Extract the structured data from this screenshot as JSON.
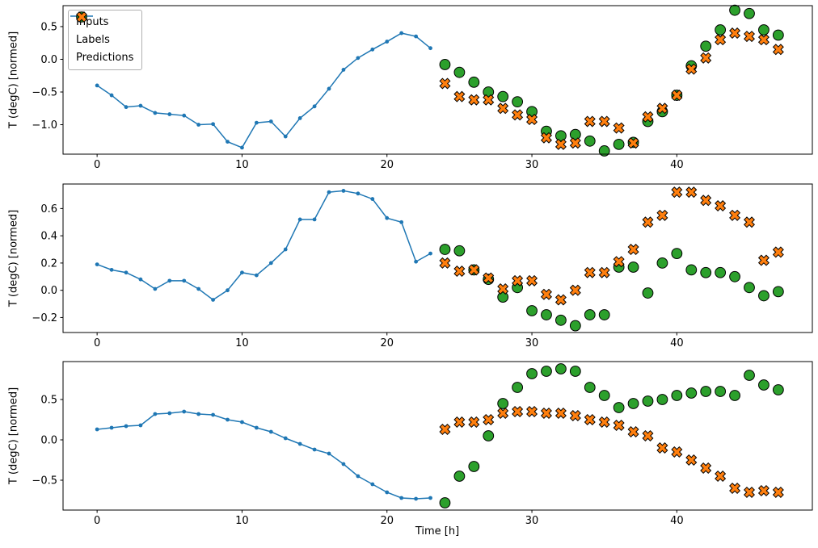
{
  "figure": {
    "xlabel": "Time [h]",
    "ylabel": "T (degC) [normed]",
    "legend": {
      "inputs": "Inputs",
      "labels": "Labels",
      "predictions": "Predictions"
    },
    "colors": {
      "inputs": "#1f77b4",
      "labels": "#2ca02c",
      "predictions": "#ff7f0e",
      "marker_edge": "#000000",
      "spine": "#000000",
      "tick_text": "#000000"
    }
  },
  "chart_data": [
    {
      "type": "line",
      "title": "",
      "xlabel": "",
      "ylabel": "T (degC) [normed]",
      "xlim": [
        -2.35,
        49.35
      ],
      "ylim": [
        -1.45,
        0.82
      ],
      "xticks": [
        0,
        10,
        20,
        30,
        40
      ],
      "yticks": [
        0.5,
        0.0,
        -0.5,
        -1.0
      ],
      "series": [
        {
          "name": "Inputs",
          "render": "line-dot",
          "x": [
            0,
            1,
            2,
            3,
            4,
            5,
            6,
            7,
            8,
            9,
            10,
            11,
            12,
            13,
            14,
            15,
            16,
            17,
            18,
            19,
            20,
            21,
            22,
            23
          ],
          "y": [
            -0.4,
            -0.55,
            -0.73,
            -0.71,
            -0.82,
            -0.84,
            -0.86,
            -1.0,
            -0.99,
            -1.26,
            -1.35,
            -0.97,
            -0.95,
            -1.18,
            -0.9,
            -0.72,
            -0.45,
            -0.16,
            0.02,
            0.15,
            0.27,
            0.4,
            0.35,
            0.17
          ]
        },
        {
          "name": "Labels",
          "render": "circle",
          "x": [
            24,
            25,
            26,
            27,
            28,
            29,
            30,
            31,
            32,
            33,
            34,
            35,
            36,
            37,
            38,
            39,
            40,
            41,
            42,
            43,
            44,
            45,
            46,
            47
          ],
          "y": [
            -0.08,
            -0.2,
            -0.35,
            -0.5,
            -0.57,
            -0.65,
            -0.8,
            -1.1,
            -1.17,
            -1.15,
            -1.25,
            -1.4,
            -1.3,
            -1.27,
            -0.95,
            -0.8,
            -0.55,
            -0.1,
            0.2,
            0.45,
            0.75,
            0.7,
            0.45,
            0.37
          ]
        },
        {
          "name": "Predictions",
          "render": "x-marker",
          "x": [
            24,
            25,
            26,
            27,
            28,
            29,
            30,
            31,
            32,
            33,
            34,
            35,
            36,
            37,
            38,
            39,
            40,
            41,
            42,
            43,
            44,
            45,
            46,
            47
          ],
          "y": [
            -0.37,
            -0.57,
            -0.62,
            -0.62,
            -0.75,
            -0.85,
            -0.92,
            -1.2,
            -1.3,
            -1.28,
            -0.95,
            -0.95,
            -1.05,
            -1.28,
            -0.88,
            -0.75,
            -0.55,
            -0.15,
            0.02,
            0.3,
            0.4,
            0.35,
            0.3,
            0.15
          ]
        }
      ]
    },
    {
      "type": "line",
      "title": "",
      "xlabel": "",
      "ylabel": "T (degC) [normed]",
      "xlim": [
        -2.35,
        49.35
      ],
      "ylim": [
        -0.31,
        0.78
      ],
      "xticks": [
        0,
        10,
        20,
        30,
        40
      ],
      "yticks": [
        0.6,
        0.4,
        0.2,
        0.0,
        -0.2
      ],
      "series": [
        {
          "name": "Inputs",
          "render": "line-dot",
          "x": [
            0,
            1,
            2,
            3,
            4,
            5,
            6,
            7,
            8,
            9,
            10,
            11,
            12,
            13,
            14,
            15,
            16,
            17,
            18,
            19,
            20,
            21,
            22,
            23
          ],
          "y": [
            0.19,
            0.15,
            0.13,
            0.08,
            0.01,
            0.07,
            0.07,
            0.01,
            -0.07,
            0.0,
            0.13,
            0.11,
            0.2,
            0.3,
            0.52,
            0.52,
            0.72,
            0.73,
            0.71,
            0.67,
            0.53,
            0.5,
            0.21,
            0.27
          ]
        },
        {
          "name": "Labels",
          "render": "circle",
          "x": [
            24,
            25,
            26,
            27,
            28,
            29,
            30,
            31,
            32,
            33,
            34,
            35,
            36,
            37,
            38,
            39,
            40,
            41,
            42,
            43,
            44,
            45,
            46,
            47
          ],
          "y": [
            0.3,
            0.29,
            0.15,
            0.08,
            -0.05,
            0.02,
            -0.15,
            -0.18,
            -0.22,
            -0.26,
            -0.18,
            -0.18,
            0.17,
            0.17,
            -0.02,
            0.2,
            0.27,
            0.15,
            0.13,
            0.13,
            0.1,
            0.02,
            -0.04,
            -0.01
          ]
        },
        {
          "name": "Predictions",
          "render": "x-marker",
          "x": [
            24,
            25,
            26,
            27,
            28,
            29,
            30,
            31,
            32,
            33,
            34,
            35,
            36,
            37,
            38,
            39,
            40,
            41,
            42,
            43,
            44,
            45,
            46,
            47
          ],
          "y": [
            0.2,
            0.14,
            0.15,
            0.09,
            0.01,
            0.07,
            0.07,
            -0.03,
            -0.07,
            0.0,
            0.13,
            0.13,
            0.21,
            0.3,
            0.5,
            0.55,
            0.72,
            0.72,
            0.66,
            0.62,
            0.55,
            0.5,
            0.22,
            0.28
          ]
        }
      ]
    },
    {
      "type": "line",
      "title": "",
      "xlabel": "Time [h]",
      "ylabel": "T (degC) [normed]",
      "xlim": [
        -2.35,
        49.35
      ],
      "ylim": [
        -0.87,
        0.97
      ],
      "xticks": [
        0,
        10,
        20,
        30,
        40
      ],
      "yticks": [
        0.5,
        0.0,
        -0.5
      ],
      "series": [
        {
          "name": "Inputs",
          "render": "line-dot",
          "x": [
            0,
            1,
            2,
            3,
            4,
            5,
            6,
            7,
            8,
            9,
            10,
            11,
            12,
            13,
            14,
            15,
            16,
            17,
            18,
            19,
            20,
            21,
            22,
            23
          ],
          "y": [
            0.13,
            0.15,
            0.17,
            0.18,
            0.32,
            0.33,
            0.35,
            0.32,
            0.31,
            0.25,
            0.22,
            0.15,
            0.1,
            0.02,
            -0.05,
            -0.12,
            -0.17,
            -0.3,
            -0.45,
            -0.55,
            -0.65,
            -0.72,
            -0.73,
            -0.72
          ]
        },
        {
          "name": "Labels",
          "render": "circle",
          "x": [
            24,
            25,
            26,
            27,
            28,
            29,
            30,
            31,
            32,
            33,
            34,
            35,
            36,
            37,
            38,
            39,
            40,
            41,
            42,
            43,
            44,
            45,
            46,
            47
          ],
          "y": [
            -0.78,
            -0.45,
            -0.33,
            0.05,
            0.45,
            0.65,
            0.82,
            0.85,
            0.88,
            0.85,
            0.65,
            0.55,
            0.4,
            0.45,
            0.48,
            0.5,
            0.55,
            0.58,
            0.6,
            0.6,
            0.55,
            0.8,
            0.68,
            0.62
          ]
        },
        {
          "name": "Predictions",
          "render": "x-marker",
          "x": [
            24,
            25,
            26,
            27,
            28,
            29,
            30,
            31,
            32,
            33,
            34,
            35,
            36,
            37,
            38,
            39,
            40,
            41,
            42,
            43,
            44,
            45,
            46,
            47
          ],
          "y": [
            0.13,
            0.22,
            0.22,
            0.25,
            0.33,
            0.35,
            0.35,
            0.33,
            0.33,
            0.3,
            0.25,
            0.22,
            0.18,
            0.1,
            0.05,
            -0.1,
            -0.15,
            -0.25,
            -0.35,
            -0.45,
            -0.6,
            -0.65,
            -0.63,
            -0.65
          ]
        }
      ]
    }
  ]
}
